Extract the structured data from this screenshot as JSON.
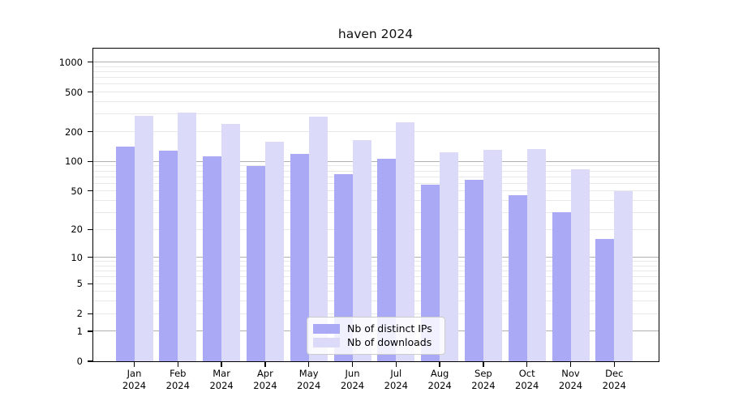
{
  "title": "haven 2024",
  "legend": {
    "items": [
      {
        "label": "Nb of distinct IPs",
        "color": "#a9a9f6"
      },
      {
        "label": "Nb of downloads",
        "color": "#dbdbf9"
      }
    ]
  },
  "colors": {
    "bar_distinct_ips": "#a9a9f6",
    "bar_downloads": "#dbdbf9",
    "grid_major": "#b0b0b0",
    "grid_minor": "#e8e8e8",
    "axis": "#000000",
    "background": "#ffffff"
  },
  "chart_data": {
    "type": "bar",
    "title": "haven 2024",
    "categories": [
      "Jan 2024",
      "Feb 2024",
      "Mar 2024",
      "Apr 2024",
      "May 2024",
      "Jun 2024",
      "Jul 2024",
      "Aug 2024",
      "Sep 2024",
      "Oct 2024",
      "Nov 2024",
      "Dec 2024"
    ],
    "series": [
      {
        "name": "Nb of distinct IPs",
        "color": "#a9a9f6",
        "values": [
          140,
          128,
          113,
          90,
          120,
          75,
          106,
          58,
          65,
          45,
          30,
          16
        ]
      },
      {
        "name": "Nb of downloads",
        "color": "#dbdbf9",
        "values": [
          290,
          313,
          240,
          158,
          285,
          165,
          250,
          125,
          131,
          133,
          83,
          50
        ]
      }
    ],
    "yscale": "log1p",
    "yticks": [
      0,
      1,
      2,
      5,
      10,
      20,
      50,
      100,
      200,
      500,
      1000
    ],
    "minor_gridlines": [
      2,
      3,
      4,
      5,
      6,
      7,
      8,
      9,
      20,
      30,
      40,
      50,
      60,
      70,
      80,
      90,
      200,
      300,
      400,
      500,
      600,
      700,
      800,
      900
    ],
    "major_gridlines": [
      1,
      10,
      100,
      1000
    ],
    "ylim": [
      0,
      1370
    ],
    "grid": "horizontal",
    "legend_position": "lower center",
    "xlabel": "",
    "ylabel": ""
  }
}
